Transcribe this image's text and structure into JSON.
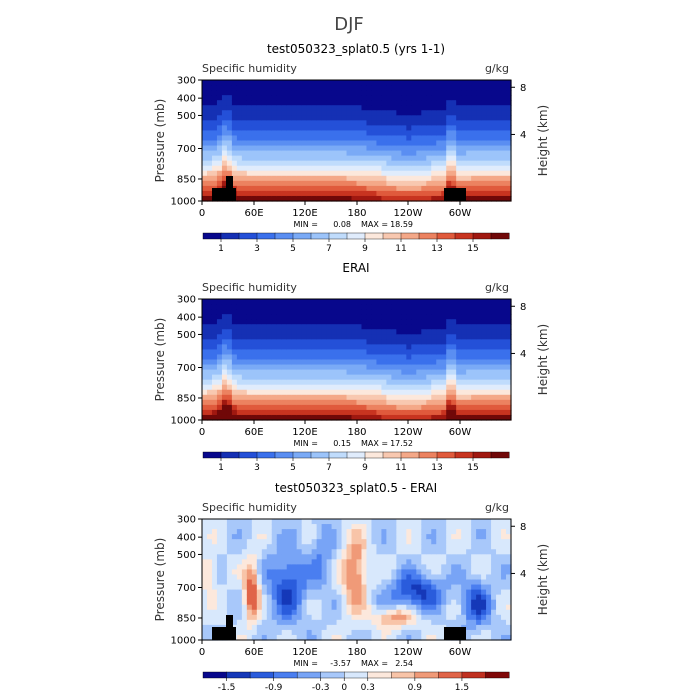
{
  "page_title": "DJF",
  "chart_data": [
    {
      "type": "heatmap",
      "title": "test050323_splat0.5 (yrs 1-1)",
      "subtitle_left": "Specific humidity",
      "units": "g/kg",
      "ylabel": "Pressure (mb)",
      "ylabel_right": "Height (km)",
      "x_ticks": [
        "0",
        "60E",
        "120E",
        "180",
        "120W",
        "60W"
      ],
      "y_ticks": [
        "300",
        "400",
        "500",
        "700",
        "850",
        "1000"
      ],
      "y_ticks_right": [
        "8",
        "4"
      ],
      "stats": {
        "min_label": "MIN =",
        "min": "0.08",
        "max_label": "MAX =",
        "max": "18.59"
      },
      "colorbar_labels": [
        "1",
        "3",
        "5",
        "7",
        "9",
        "11",
        "13",
        "15"
      ]
    },
    {
      "type": "heatmap",
      "title": "ERAI",
      "subtitle_left": "Specific humidity",
      "units": "g/kg",
      "ylabel": "Pressure (mb)",
      "ylabel_right": "Height (km)",
      "x_ticks": [
        "0",
        "60E",
        "120E",
        "180",
        "120W",
        "60W"
      ],
      "y_ticks": [
        "300",
        "400",
        "500",
        "700",
        "850",
        "1000"
      ],
      "y_ticks_right": [
        "8",
        "4"
      ],
      "stats": {
        "min_label": "MIN =",
        "min": "0.15",
        "max_label": "MAX =",
        "max": "17.52"
      },
      "colorbar_labels": [
        "1",
        "3",
        "5",
        "7",
        "9",
        "11",
        "13",
        "15"
      ]
    },
    {
      "type": "heatmap",
      "title": "test050323_splat0.5 - ERAI",
      "subtitle_left": "Specific humidity",
      "units": "g/kg",
      "ylabel": "Pressure (mb)",
      "ylabel_right": "Height (km)",
      "x_ticks": [
        "0",
        "60E",
        "120E",
        "180",
        "120W",
        "60W"
      ],
      "y_ticks": [
        "300",
        "400",
        "500",
        "700",
        "850",
        "1000"
      ],
      "y_ticks_right": [
        "8",
        "4"
      ],
      "stats": {
        "min_label": "MIN =",
        "min": "-3.57",
        "max_label": "MAX =",
        "max": "2.54"
      },
      "colorbar_labels": [
        "-1.5",
        "-0.9",
        "-0.3",
        "0",
        "0.3",
        "0.9",
        "1.5"
      ]
    }
  ],
  "palettes": {
    "abs": [
      "#08088c",
      "#1530b4",
      "#2450d8",
      "#3a70ec",
      "#5a8ef2",
      "#7aaaf6",
      "#9cc4fa",
      "#c0dcfc",
      "#e0ecfc",
      "#fce8dc",
      "#f8c8b0",
      "#f4a888",
      "#ec8260",
      "#e05a3c",
      "#c83420",
      "#a01810",
      "#700808"
    ],
    "diff": [
      "#08088c",
      "#1538b8",
      "#2a5cdc",
      "#4a7ef0",
      "#78a4f6",
      "#a8c8fa",
      "#d8e8fc",
      "#fce8dc",
      "#f8c4a8",
      "#f09a78",
      "#e06448",
      "#c03020",
      "#800808"
    ]
  }
}
